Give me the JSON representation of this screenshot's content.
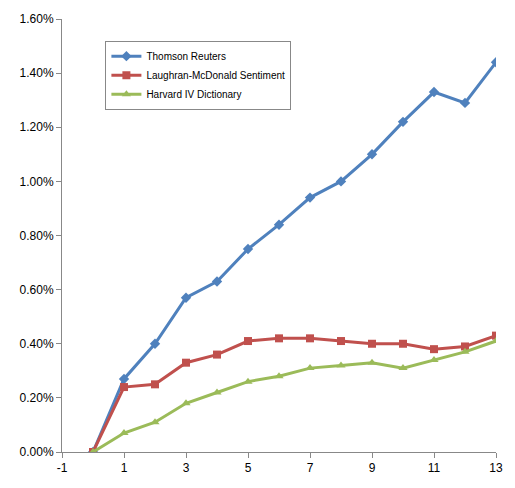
{
  "chart_data": {
    "type": "line",
    "x": [
      0,
      1,
      2,
      3,
      4,
      5,
      6,
      7,
      8,
      9,
      10,
      11,
      12,
      13
    ],
    "series": [
      {
        "name": "Thomson Reuters",
        "color": "#4F81BD",
        "marker": "diamond",
        "values": [
          0,
          0.27,
          0.4,
          0.57,
          0.63,
          0.75,
          0.84,
          0.94,
          1.0,
          1.1,
          1.22,
          1.33,
          1.29,
          1.44
        ]
      },
      {
        "name": "Laughran-McDonald Sentiment",
        "color": "#C0504D",
        "marker": "square",
        "values": [
          0,
          0.24,
          0.25,
          0.33,
          0.36,
          0.41,
          0.42,
          0.42,
          0.41,
          0.4,
          0.4,
          0.38,
          0.39,
          0.43
        ]
      },
      {
        "name": "Harvard IV Dictionary",
        "color": "#9BBB59",
        "marker": "triangle-up",
        "values": [
          0,
          0.07,
          0.11,
          0.18,
          0.22,
          0.26,
          0.28,
          0.31,
          0.32,
          0.33,
          0.31,
          0.34,
          0.37,
          0.41
        ]
      }
    ],
    "xlim": [
      -1,
      13
    ],
    "xticks": [
      -1,
      1,
      3,
      5,
      7,
      9,
      11,
      13
    ],
    "ylim": [
      0,
      1.6
    ],
    "yticks": [
      {
        "value": 0,
        "label": "0.00%"
      },
      {
        "value": 0.2,
        "label": "0.20%"
      },
      {
        "value": 0.4,
        "label": "0.40%"
      },
      {
        "value": 0.6,
        "label": "0.60%"
      },
      {
        "value": 0.8,
        "label": "0.80%"
      },
      {
        "value": 1.0,
        "label": "1.00%"
      },
      {
        "value": 1.2,
        "label": "1.20%"
      },
      {
        "value": 1.4,
        "label": "1.40%"
      },
      {
        "value": 1.6,
        "label": "1.60%"
      }
    ],
    "grid": false,
    "legend": "top left"
  }
}
